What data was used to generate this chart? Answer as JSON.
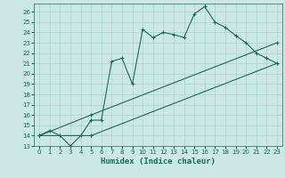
{
  "xlabel": "Humidex (Indice chaleur)",
  "background_color": "#cce8e4",
  "grid_color": "#aad4cc",
  "line_color": "#1a6b5a",
  "xlim": [
    -0.5,
    23.5
  ],
  "ylim": [
    13,
    26.8
  ],
  "yticks": [
    13,
    14,
    15,
    16,
    17,
    18,
    19,
    20,
    21,
    22,
    23,
    24,
    25,
    26
  ],
  "xticks": [
    0,
    1,
    2,
    3,
    4,
    5,
    6,
    7,
    8,
    9,
    10,
    11,
    12,
    13,
    14,
    15,
    16,
    17,
    18,
    19,
    20,
    21,
    22,
    23
  ],
  "series1": {
    "x": [
      0,
      1,
      2,
      3,
      4,
      5,
      6,
      7,
      8,
      9,
      10,
      11,
      12,
      13,
      14,
      15,
      16,
      17,
      18,
      19,
      20,
      21,
      22,
      23
    ],
    "y": [
      14,
      14.5,
      14,
      13,
      14,
      15.5,
      15.5,
      21.2,
      21.5,
      19,
      24.3,
      23.5,
      24,
      23.8,
      23.5,
      25.8,
      26.5,
      25,
      24.5,
      23.7,
      23,
      22,
      21.5,
      21
    ]
  },
  "series2": {
    "x": [
      0,
      5,
      23
    ],
    "y": [
      14,
      16,
      23
    ]
  },
  "series3": {
    "x": [
      0,
      5,
      23
    ],
    "y": [
      14,
      14,
      21
    ]
  }
}
